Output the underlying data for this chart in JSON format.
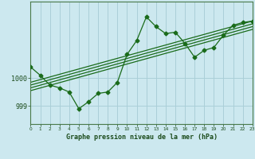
{
  "title": "Graphe pression niveau de la mer (hPa)",
  "background_color": "#cce8ef",
  "grid_color": "#aacfd8",
  "line_color": "#1a6b1a",
  "text_color": "#1a4a1a",
  "x_min": 0,
  "x_max": 23,
  "y_min": 998.35,
  "y_max": 1002.75,
  "yticks": [
    999,
    1000
  ],
  "xticks": [
    0,
    1,
    2,
    3,
    4,
    5,
    6,
    7,
    8,
    9,
    10,
    11,
    12,
    13,
    14,
    15,
    16,
    17,
    18,
    19,
    20,
    21,
    22,
    23
  ],
  "pressure_data": [
    [
      0,
      1000.4
    ],
    [
      1,
      1000.1
    ],
    [
      2,
      999.75
    ],
    [
      3,
      999.65
    ],
    [
      4,
      999.5
    ],
    [
      5,
      998.9
    ],
    [
      6,
      999.15
    ],
    [
      7,
      999.45
    ],
    [
      8,
      999.5
    ],
    [
      9,
      999.85
    ],
    [
      10,
      1000.85
    ],
    [
      11,
      1001.35
    ],
    [
      12,
      1002.2
    ],
    [
      13,
      1001.85
    ],
    [
      14,
      1001.6
    ],
    [
      15,
      1001.65
    ],
    [
      16,
      1001.25
    ],
    [
      17,
      1000.75
    ],
    [
      18,
      1001.0
    ],
    [
      19,
      1001.1
    ],
    [
      20,
      1001.55
    ],
    [
      21,
      1001.9
    ],
    [
      22,
      1002.0
    ],
    [
      23,
      1002.05
    ]
  ],
  "trend_lines": [
    [
      [
        0,
        999.55
      ],
      [
        23,
        1001.75
      ]
    ],
    [
      [
        0,
        999.65
      ],
      [
        23,
        1001.85
      ]
    ],
    [
      [
        0,
        999.75
      ],
      [
        23,
        1001.95
      ]
    ],
    [
      [
        0,
        999.85
      ],
      [
        23,
        1002.05
      ]
    ]
  ]
}
